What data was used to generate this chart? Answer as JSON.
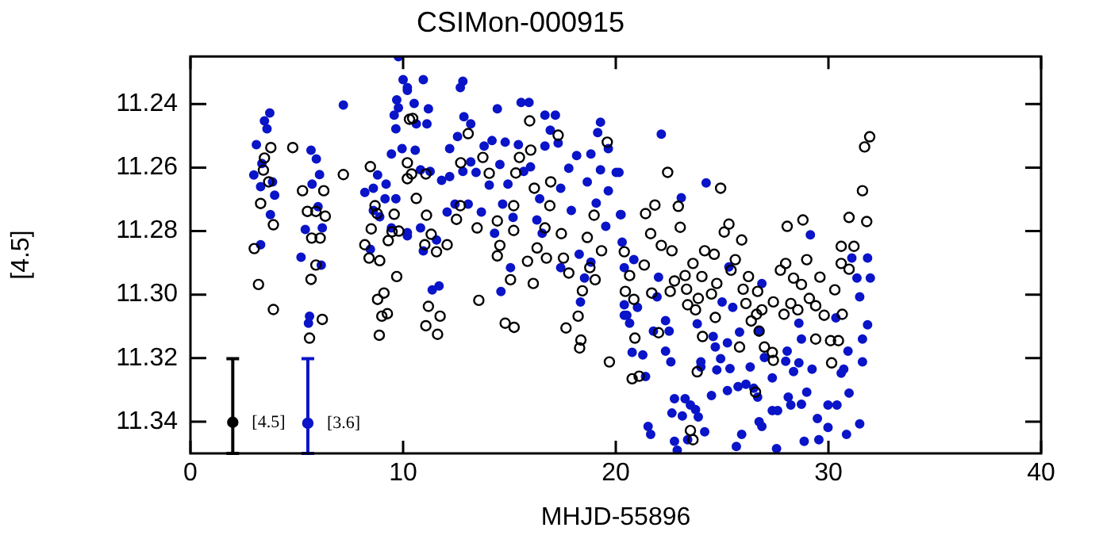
{
  "chart_data": {
    "type": "scatter",
    "title": "CSIMon-000915",
    "xlabel": "MHJD-55896",
    "ylabel": "[4.5]",
    "xlim": [
      0,
      40
    ],
    "xticks": [
      0,
      10,
      20,
      30,
      40
    ],
    "ylim": [
      11.35,
      11.225
    ],
    "yticks": [
      11.24,
      11.26,
      11.28,
      {
        "value": 11.3,
        "label": "11.30"
      },
      11.32,
      11.34
    ],
    "grid": false,
    "legend": false,
    "marker": "circle",
    "series": [
      {
        "color": "#000000",
        "x": [
          3.78,
          3.48,
          3.43,
          3.68,
          3.3,
          3.9,
          3.0,
          3.2,
          3.9,
          4.81,
          5.27,
          6.27,
          5.5,
          5.9,
          6.34,
          6.1,
          5.7,
          5.9,
          5.67,
          6.2,
          5.6,
          7.19,
          8.46,
          8.68,
          8.78,
          9.58,
          8.5,
          9.48,
          9.3,
          9.8,
          8.2,
          8.4,
          8.9,
          9.7,
          8.8,
          9.1,
          9.0,
          9.26,
          8.88,
          10.3,
          10.2,
          10.2,
          10.45,
          15.95,
          17.29,
          19.6,
          13.06,
          16.0,
          15.47,
          13.75,
          12.71,
          14.05,
          10.4,
          11.07,
          15.3,
          16.94,
          16.17,
          10.62,
          12.69,
          15.2,
          16.9,
          18.98,
          11.1,
          12.51,
          14.43,
          13.48,
          15.2,
          16.67,
          17.44,
          18.66,
          11.32,
          11.02,
          12.07,
          11.57,
          14.55,
          16.3,
          19.33,
          14.43,
          15.85,
          16.74,
          17.54,
          17.79,
          15.05,
          16.12,
          13.56,
          11.19,
          11.74,
          11.07,
          11.62,
          14.8,
          15.22,
          17.66,
          18.23,
          18.43,
          18.36,
          18.3,
          19.7,
          19.03,
          18.78,
          22.44,
          24.93,
          21.84,
          21.4,
          22.94,
          23.03,
          25.32,
          25.1,
          25.92,
          28.06,
          28.8,
          30.97,
          31.8,
          31.6,
          31.7,
          31.94,
          30.6,
          31.2,
          21.64,
          22.14,
          22.64,
          20.4,
          21.34,
          20.65,
          24.18,
          24.63,
          23.63,
          25.62,
          25.42,
          22.76,
          23.26,
          24.05,
          24.75,
          26.24,
          27.74,
          28.36,
          28.73,
          29.6,
          27.99,
          28.98,
          30.6,
          30.97,
          20.45,
          20.85,
          21.69,
          22.56,
          23.33,
          23.88,
          24.5,
          25.99,
          26.67,
          23.38,
          23.75,
          26.12,
          26.87,
          27.41,
          28.23,
          29.1,
          29.4,
          29.8,
          30.3,
          30.65,
          26.62,
          27.91,
          28.56,
          24.68,
          26.37,
          26.74,
          20.9,
          22.01,
          24.08,
          25.82,
          26.99,
          27.41,
          27.36,
          29.4,
          30.1,
          30.47,
          30.15,
          23.83,
          20.77,
          21.1,
          26.57,
          23.51,
          23.63
        ],
        "values": [
          11.2537,
          11.257,
          11.2608,
          11.2645,
          11.2713,
          11.278,
          11.2855,
          11.2968,
          11.3047,
          11.2537,
          11.2673,
          11.2673,
          11.2738,
          11.2738,
          11.2753,
          11.2822,
          11.2822,
          11.2907,
          11.2952,
          11.3078,
          11.3137,
          11.2622,
          11.2597,
          11.272,
          11.2745,
          11.2747,
          11.2793,
          11.2802,
          11.283,
          11.28,
          11.2843,
          11.2885,
          11.2893,
          11.2943,
          11.3015,
          11.2995,
          11.3068,
          11.306,
          11.3128,
          11.2448,
          11.2585,
          11.2635,
          11.2445,
          11.2453,
          11.2498,
          11.252,
          11.2493,
          11.2545,
          11.2568,
          11.2568,
          11.2585,
          11.2618,
          11.262,
          11.262,
          11.2617,
          11.2645,
          11.2665,
          11.2697,
          11.272,
          11.272,
          11.272,
          11.275,
          11.275,
          11.2763,
          11.2768,
          11.279,
          11.2798,
          11.279,
          11.2808,
          11.282,
          11.281,
          11.2843,
          11.2843,
          11.2865,
          11.2845,
          11.2853,
          11.2862,
          11.2878,
          11.2895,
          11.2885,
          11.2885,
          11.2932,
          11.2953,
          11.2965,
          11.3018,
          11.3037,
          11.3068,
          11.3098,
          11.3125,
          11.309,
          11.3103,
          11.3105,
          11.3068,
          11.2988,
          11.3143,
          11.3168,
          11.3212,
          11.2953,
          11.2915,
          11.2615,
          11.2665,
          11.2718,
          11.2745,
          11.2722,
          11.2788,
          11.2778,
          11.2803,
          11.2828,
          11.2785,
          11.2765,
          11.2757,
          11.277,
          11.2673,
          11.2535,
          11.2503,
          11.2848,
          11.2848,
          11.2808,
          11.2845,
          11.2862,
          11.2865,
          11.2907,
          11.294,
          11.2862,
          11.2873,
          11.2902,
          11.289,
          11.2923,
          11.2957,
          11.294,
          11.2943,
          11.2965,
          11.2943,
          11.2923,
          11.2948,
          11.2968,
          11.2945,
          11.2902,
          11.289,
          11.2902,
          11.292,
          11.299,
          11.3015,
          11.2995,
          11.299,
          11.2983,
          11.3012,
          11.2998,
          11.2983,
          11.299,
          11.3032,
          11.3048,
          11.3028,
          11.3048,
          11.3023,
          11.3028,
          11.3012,
          11.3035,
          11.3065,
          11.2985,
          11.3062,
          11.3062,
          11.3062,
          11.3048,
          11.3072,
          11.3083,
          11.3115,
          11.3137,
          11.312,
          11.3132,
          11.3165,
          11.3165,
          11.3207,
          11.3182,
          11.314,
          11.3145,
          11.3145,
          11.3215,
          11.3243,
          11.3265,
          11.3257,
          11.3307,
          11.3428,
          11.3457
        ]
      },
      {
        "color": "#0a14c8",
        "x": [
          3.73,
          3.48,
          3.6,
          3.1,
          3.36,
          2.98,
          3.86,
          3.3,
          3.96,
          3.76,
          3.3,
          5.67,
          5.92,
          6.07,
          5.72,
          6.0,
          5.4,
          6.2,
          5.2,
          6.15,
          5.6,
          5.55,
          7.19,
          8.2,
          8.6,
          8.8,
          9.2,
          8.6,
          8.9,
          9.15,
          9.45,
          9.66,
          8.46,
          10.2,
          9.78,
          10.0,
          10.2,
          9.7,
          9.78,
          9.58,
          9.66,
          9.45,
          9.95,
          10.95,
          12.81,
          12.69,
          10.2,
          10.52,
          11.19,
          14.43,
          15.55,
          15.92,
          16.67,
          17.16,
          12.86,
          11.12,
          10.62,
          13.18,
          19.28,
          16.92,
          19.15,
          12.56,
          14.8,
          15.42,
          14.18,
          13.81,
          17.29,
          16.67,
          19.65,
          12.19,
          18.16,
          18.83,
          10.57,
          13.18,
          14.55,
          15.99,
          17.79,
          19.28,
          20.02,
          11.27,
          12.81,
          13.43,
          12.19,
          10.82,
          14.05,
          14.93,
          15.67,
          18.66,
          17.41,
          19.65,
          11.81,
          16.42,
          14.68,
          19.08,
          12.44,
          13.06,
          17.91,
          13.68,
          12.07,
          15.17,
          16.29,
          10.82,
          20.22,
          16.54,
          19.53,
          11.57,
          10.2,
          14.3,
          18.28,
          18.83,
          15.05,
          17.41,
          20.4,
          10.95,
          18.53,
          11.37,
          11.69,
          14.6,
          18.34,
          20.4,
          22.14,
          24.25,
          23.08,
          20.15,
          20.25,
          29.15,
          20.3,
          20.85,
          22.01,
          25.32,
          31.1,
          31.84,
          26.87,
          31.34,
          31.97,
          21.94,
          20.4,
          21.02,
          25.0,
          25.5,
          31.47,
          20.52,
          30.35,
          28.61,
          31.84,
          22.34,
          20.65,
          23.83,
          21.77,
          22.51,
          26.74,
          24.58,
          25.82,
          31.6,
          28.73,
          20.77,
          21.27,
          22.34,
          24.68,
          25.25,
          28.06,
          30.92,
          22.59,
          24.0,
          24.93,
          26.32,
          26.99,
          27.99,
          28.61,
          29.23,
          30.72,
          31.6,
          24.0,
          30.6,
          21.4,
          24.75,
          25.37,
          27.36,
          28.36,
          25.75,
          26.12,
          26.49,
          28.98,
          30.97,
          25.25,
          24.5,
          22.76,
          23.26,
          23.51,
          22.64,
          23.13,
          23.75,
          23.88,
          27.36,
          27.61,
          28.23,
          28.73,
          26.67,
          28.11,
          29.98,
          30.4,
          29.48,
          29.98,
          31.47,
          30.85,
          21.52,
          21.64,
          22.76,
          23.38,
          24.18,
          25.92,
          26.74,
          26.87,
          28.86,
          29.55,
          25.67,
          27.56,
          22.89
        ],
        "values": [
          11.2428,
          11.2453,
          11.2478,
          11.2528,
          11.2587,
          11.2623,
          11.2645,
          11.266,
          11.2687,
          11.2748,
          11.2843,
          11.2545,
          11.2573,
          11.2622,
          11.2652,
          11.2723,
          11.2795,
          11.279,
          11.2882,
          11.2907,
          11.3068,
          11.309,
          11.2403,
          11.2678,
          11.2665,
          11.2623,
          11.2652,
          11.2735,
          11.2755,
          11.2698,
          11.279,
          11.2698,
          11.2857,
          11.2815,
          11.2251,
          11.2323,
          11.2357,
          11.2387,
          11.2412,
          11.2435,
          11.2478,
          11.2557,
          11.254,
          11.2323,
          11.2328,
          11.2348,
          11.2348,
          11.2398,
          11.2415,
          11.2415,
          11.2395,
          11.2395,
          11.2435,
          11.2435,
          11.244,
          11.2462,
          11.2462,
          11.2462,
          11.2457,
          11.2482,
          11.249,
          11.2502,
          11.252,
          11.2528,
          11.2515,
          11.2532,
          11.2523,
          11.2532,
          11.254,
          11.254,
          11.2562,
          11.2557,
          11.2545,
          11.2582,
          11.259,
          11.2598,
          11.2602,
          11.2607,
          11.2615,
          11.2612,
          11.2612,
          11.2615,
          11.2628,
          11.2607,
          11.2655,
          11.2652,
          11.2612,
          11.2645,
          11.2665,
          11.2673,
          11.264,
          11.2698,
          11.2715,
          11.2712,
          11.2715,
          11.2715,
          11.2735,
          11.274,
          11.274,
          11.2757,
          11.2765,
          11.279,
          11.2748,
          11.2807,
          11.2785,
          11.2828,
          11.2805,
          11.2807,
          11.2873,
          11.2898,
          11.2915,
          11.2915,
          11.2915,
          11.2862,
          11.2948,
          11.2985,
          11.2973,
          11.299,
          11.3023,
          11.3065,
          11.2495,
          11.2648,
          11.2695,
          11.2615,
          11.2748,
          11.2812,
          11.2835,
          11.289,
          11.2945,
          11.2913,
          11.2885,
          11.2885,
          11.2965,
          11.2948,
          11.2948,
          11.3007,
          11.3032,
          11.304,
          11.3023,
          11.304,
          11.3007,
          11.3065,
          11.3073,
          11.309,
          11.3095,
          11.3082,
          11.309,
          11.3092,
          11.3115,
          11.3115,
          11.3115,
          11.3132,
          11.3118,
          11.314,
          11.314,
          11.3182,
          11.319,
          11.3178,
          11.3165,
          11.3152,
          11.3178,
          11.3178,
          11.3212,
          11.3212,
          11.3202,
          11.3228,
          11.3198,
          11.321,
          11.3215,
          11.3235,
          11.3235,
          11.3212,
          11.3228,
          11.3247,
          11.3258,
          11.3237,
          11.3233,
          11.3262,
          11.3242,
          11.329,
          11.3282,
          11.3295,
          11.3307,
          11.331,
          11.3302,
          11.3318,
          11.3328,
          11.3328,
          11.3348,
          11.3373,
          11.3382,
          11.3362,
          11.3385,
          11.3365,
          11.3365,
          11.3348,
          11.3345,
          11.3323,
          11.3323,
          11.3348,
          11.3348,
          11.339,
          11.3418,
          11.3407,
          11.344,
          11.3415,
          11.344,
          11.3462,
          11.3457,
          11.3432,
          11.344,
          11.34,
          11.3415,
          11.3462,
          11.3457,
          11.3478,
          11.3485,
          11.349
        ]
      },
      {
        "name": "[4.5]",
        "color": "#000000",
        "x": [
          1.99
        ],
        "values": [
          11.3402
        ],
        "errors": [
          [
            11.3202,
            11.35
          ]
        ]
      },
      {
        "name": "[3.6]",
        "color": "#0a14c8",
        "x": [
          5.52
        ],
        "values": [
          11.3405
        ],
        "errors": [
          [
            11.3202,
            11.35
          ]
        ]
      }
    ]
  }
}
